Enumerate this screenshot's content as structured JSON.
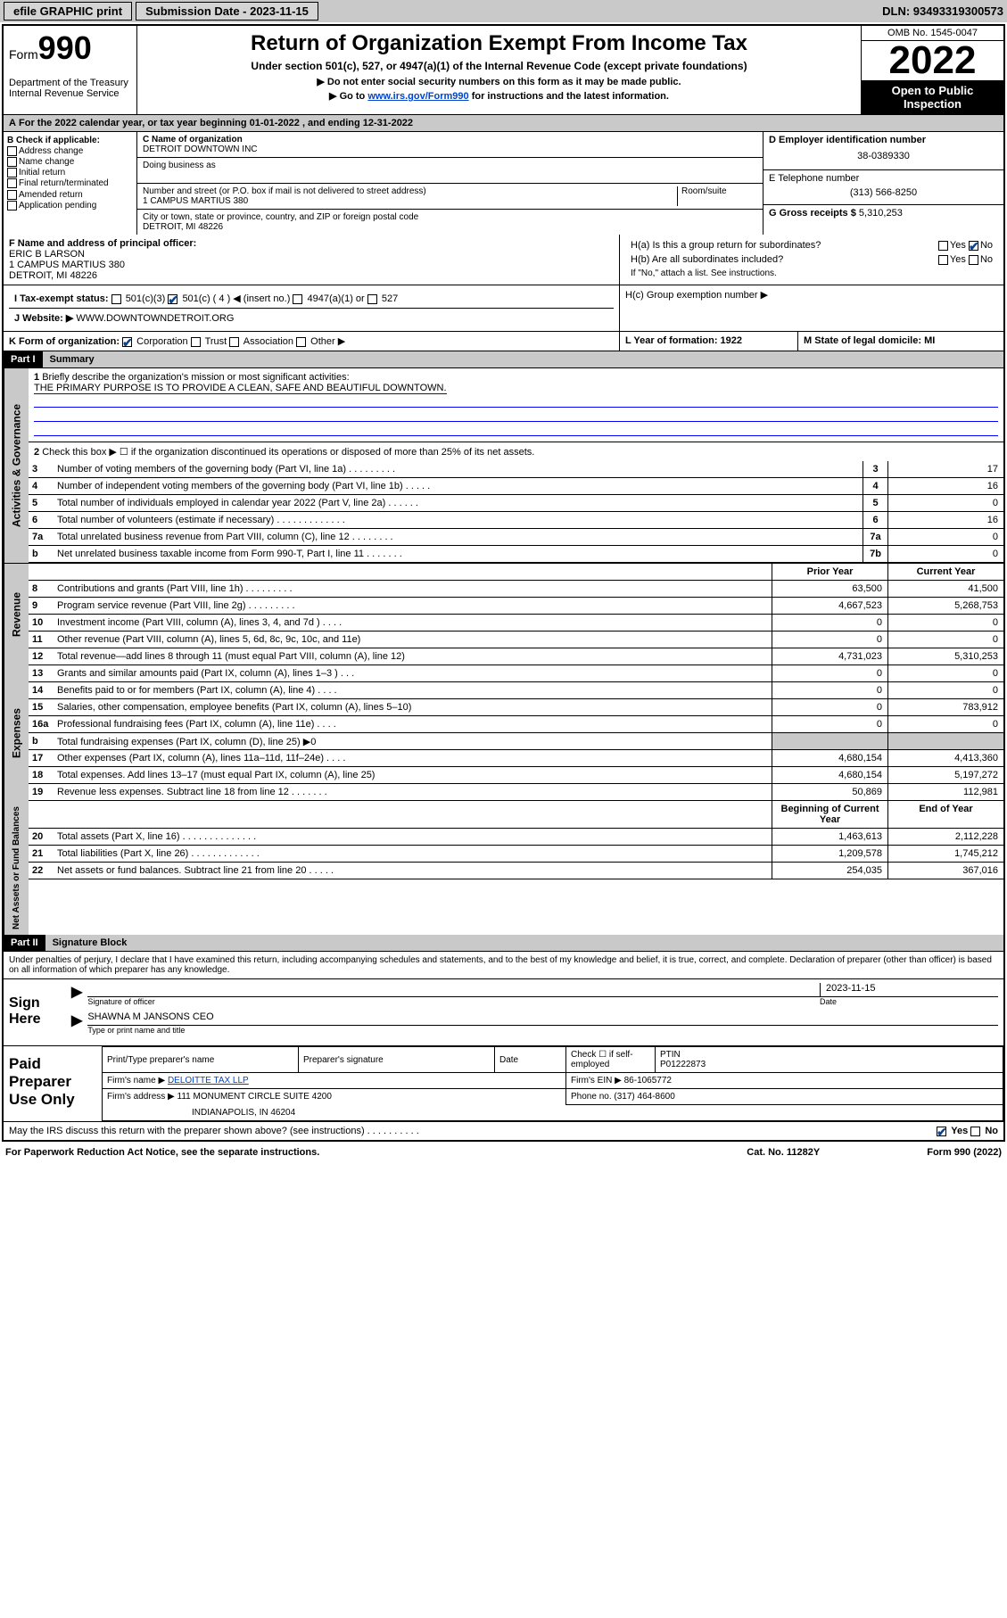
{
  "topbar": {
    "efile": "efile GRAPHIC print",
    "submission_label": "Submission Date - 2023-11-15",
    "dln": "DLN: 93493319300573"
  },
  "header": {
    "form_label": "Form",
    "form_no": "990",
    "dept": "Department of the Treasury Internal Revenue Service",
    "title": "Return of Organization Exempt From Income Tax",
    "sub": "Under section 501(c), 527, or 4947(a)(1) of the Internal Revenue Code (except private foundations)",
    "note1": "▶ Do not enter social security numbers on this form as it may be made public.",
    "note2a": "▶ Go to ",
    "note2_link": "www.irs.gov/Form990",
    "note2b": " for instructions and the latest information.",
    "omb": "OMB No. 1545-0047",
    "year": "2022",
    "inspect": "Open to Public Inspection"
  },
  "period": "For the 2022 calendar year, or tax year beginning 01-01-2022    , and ending 12-31-2022",
  "sectionB": {
    "title": "B Check if applicable:",
    "opts": [
      "Address change",
      "Name change",
      "Initial return",
      "Final return/terminated",
      "Amended return",
      "Application pending"
    ]
  },
  "sectionC": {
    "name_lbl": "C Name of organization",
    "name": "DETROIT DOWNTOWN INC",
    "dba_lbl": "Doing business as",
    "dba": "",
    "addr_lbl": "Number and street (or P.O. box if mail is not delivered to street address)",
    "room_lbl": "Room/suite",
    "addr": "1 CAMPUS MARTIUS 380",
    "city_lbl": "City or town, state or province, country, and ZIP or foreign postal code",
    "city": "DETROIT, MI  48226"
  },
  "sectionD": {
    "lbl": "D Employer identification number",
    "val": "38-0389330"
  },
  "sectionE": {
    "lbl": "E Telephone number",
    "val": "(313) 566-8250"
  },
  "sectionG": {
    "lbl": "G Gross receipts $",
    "val": "5,310,253"
  },
  "sectionF": {
    "lbl": "F Name and address of principal officer:",
    "name": "ERIC B LARSON",
    "addr1": "1 CAMPUS MARTIUS 380",
    "addr2": "DETROIT, MI  48226"
  },
  "sectionH": {
    "ha": "H(a)  Is this a group return for subordinates?",
    "hb": "H(b)  Are all subordinates included?",
    "hb_note": "If \"No,\" attach a list. See instructions.",
    "hc": "H(c)  Group exemption number ▶"
  },
  "rowI": {
    "lbl": "I    Tax-exempt status:",
    "o1": "501(c)(3)",
    "o2": "501(c) ( 4 ) ◀ (insert no.)",
    "o3": "4947(a)(1) or",
    "o4": "527"
  },
  "rowJ": {
    "lbl": "J    Website: ▶",
    "val": "WWW.DOWNTOWNDETROIT.ORG"
  },
  "rowK": {
    "lbl": "K Form of organization:",
    "opts": [
      "Corporation",
      "Trust",
      "Association",
      "Other ▶"
    ]
  },
  "rowL": {
    "lbl": "L Year of formation: 1922"
  },
  "rowM": {
    "lbl": "M State of legal domicile: MI"
  },
  "partI": {
    "hdr": "Part I",
    "title": "Summary"
  },
  "summary1": {
    "lbl": "Briefly describe the organization's mission or most significant activities:",
    "val": "THE PRIMARY PURPOSE IS TO PROVIDE A CLEAN, SAFE AND BEAUTIFUL DOWNTOWN."
  },
  "summary2": "Check this box ▶ ☐  if the organization discontinued its operations or disposed of more than 25% of its net assets.",
  "govLines": [
    {
      "n": "3",
      "d": "Number of voting members of the governing body (Part VI, line 1a)   .    .    .    .    .    .    .    .    .",
      "b": "3",
      "v": "17"
    },
    {
      "n": "4",
      "d": "Number of independent voting members of the governing body (Part VI, line 1b)   .    .    .    .    .",
      "b": "4",
      "v": "16"
    },
    {
      "n": "5",
      "d": "Total number of individuals employed in calendar year 2022 (Part V, line 2a)   .    .    .    .    .    .",
      "b": "5",
      "v": "0"
    },
    {
      "n": "6",
      "d": "Total number of volunteers (estimate if necessary)   .    .    .    .    .    .    .    .    .    .    .    .    .",
      "b": "6",
      "v": "16"
    },
    {
      "n": "7a",
      "d": "Total unrelated business revenue from Part VIII, column (C), line 12   .    .    .    .    .    .    .    .",
      "b": "7a",
      "v": "0"
    },
    {
      "n": "b",
      "d": "Net unrelated business taxable income from Form 990-T, Part I, line 11   .    .    .    .    .    .    .",
      "b": "7b",
      "v": "0"
    }
  ],
  "revHdr": {
    "c1": "Prior Year",
    "c2": "Current Year"
  },
  "revLines": [
    {
      "n": "8",
      "d": "Contributions and grants (Part VIII, line 1h)   .    .    .    .    .    .    .    .    .",
      "v1": "63,500",
      "v2": "41,500"
    },
    {
      "n": "9",
      "d": "Program service revenue (Part VIII, line 2g)   .    .    .    .    .    .    .    .    .",
      "v1": "4,667,523",
      "v2": "5,268,753"
    },
    {
      "n": "10",
      "d": "Investment income (Part VIII, column (A), lines 3, 4, and 7d )   .    .    .    .",
      "v1": "0",
      "v2": "0"
    },
    {
      "n": "11",
      "d": "Other revenue (Part VIII, column (A), lines 5, 6d, 8c, 9c, 10c, and 11e)",
      "v1": "0",
      "v2": "0"
    },
    {
      "n": "12",
      "d": "Total revenue—add lines 8 through 11 (must equal Part VIII, column (A), line 12)",
      "v1": "4,731,023",
      "v2": "5,310,253"
    }
  ],
  "expLines": [
    {
      "n": "13",
      "d": "Grants and similar amounts paid (Part IX, column (A), lines 1–3 )   .    .    .",
      "v1": "0",
      "v2": "0"
    },
    {
      "n": "14",
      "d": "Benefits paid to or for members (Part IX, column (A), line 4)   .    .    .    .",
      "v1": "0",
      "v2": "0"
    },
    {
      "n": "15",
      "d": "Salaries, other compensation, employee benefits (Part IX, column (A), lines 5–10)",
      "v1": "0",
      "v2": "783,912"
    },
    {
      "n": "16a",
      "d": "Professional fundraising fees (Part IX, column (A), line 11e)   .    .    .    .",
      "v1": "0",
      "v2": "0"
    },
    {
      "n": "b",
      "d": "Total fundraising expenses (Part IX, column (D), line 25) ▶0",
      "v1": "",
      "v2": "",
      "g": true
    },
    {
      "n": "17",
      "d": "Other expenses (Part IX, column (A), lines 11a–11d, 11f–24e)   .    .    .    .",
      "v1": "4,680,154",
      "v2": "4,413,360"
    },
    {
      "n": "18",
      "d": "Total expenses. Add lines 13–17 (must equal Part IX, column (A), line 25)",
      "v1": "4,680,154",
      "v2": "5,197,272"
    },
    {
      "n": "19",
      "d": "Revenue less expenses. Subtract line 18 from line 12   .    .    .    .    .    .    .",
      "v1": "50,869",
      "v2": "112,981"
    }
  ],
  "netHdr": {
    "c1": "Beginning of Current Year",
    "c2": "End of Year"
  },
  "netLines": [
    {
      "n": "20",
      "d": "Total assets (Part X, line 16)   .    .    .    .    .    .    .    .    .    .    .    .    .    .",
      "v1": "1,463,613",
      "v2": "2,112,228"
    },
    {
      "n": "21",
      "d": "Total liabilities (Part X, line 26)   .    .    .    .    .    .    .    .    .    .    .    .    .",
      "v1": "1,209,578",
      "v2": "1,745,212"
    },
    {
      "n": "22",
      "d": "Net assets or fund balances. Subtract line 21 from line 20   .    .    .    .    .",
      "v1": "254,035",
      "v2": "367,016"
    }
  ],
  "partII": {
    "hdr": "Part II",
    "title": "Signature Block"
  },
  "perjury": "Under penalties of perjury, I declare that I have examined this return, including accompanying schedules and statements, and to the best of my knowledge and belief, it is true, correct, and complete. Declaration of preparer (other than officer) is based on all information of which preparer has any knowledge.",
  "sign": {
    "lbl": "Sign Here",
    "sig_cap": "Signature of officer",
    "date": "2023-11-15",
    "date_cap": "Date",
    "name": "SHAWNA M JANSONS CEO",
    "name_cap": "Type or print name and title"
  },
  "prep": {
    "lbl": "Paid Preparer Use Only",
    "h1": "Print/Type preparer's name",
    "h2": "Preparer's signature",
    "h3": "Date",
    "h4": "Check ☐ if self-employed",
    "h5": "PTIN",
    "ptin": "P01222873",
    "firm_lbl": "Firm's name    ▶",
    "firm": "DELOITTE TAX LLP",
    "ein_lbl": "Firm's EIN ▶",
    "ein": "86-1065772",
    "addr_lbl": "Firm's address ▶",
    "addr": "111 MONUMENT CIRCLE SUITE 4200",
    "addr2": "INDIANAPOLIS, IN  46204",
    "phone_lbl": "Phone no.",
    "phone": "(317) 464-8600"
  },
  "discuss": "May the IRS discuss this return with the preparer shown above? (see instructions)    .    .    .    .    .    .    .    .    .    .",
  "yes": "Yes",
  "no": "No",
  "footer": {
    "l": "For Paperwork Reduction Act Notice, see the separate instructions.",
    "m": "Cat. No. 11282Y",
    "r": "Form 990 (2022)"
  },
  "tabs": {
    "gov": "Activities & Governance",
    "rev": "Revenue",
    "exp": "Expenses",
    "net": "Net Assets or Fund Balances"
  }
}
